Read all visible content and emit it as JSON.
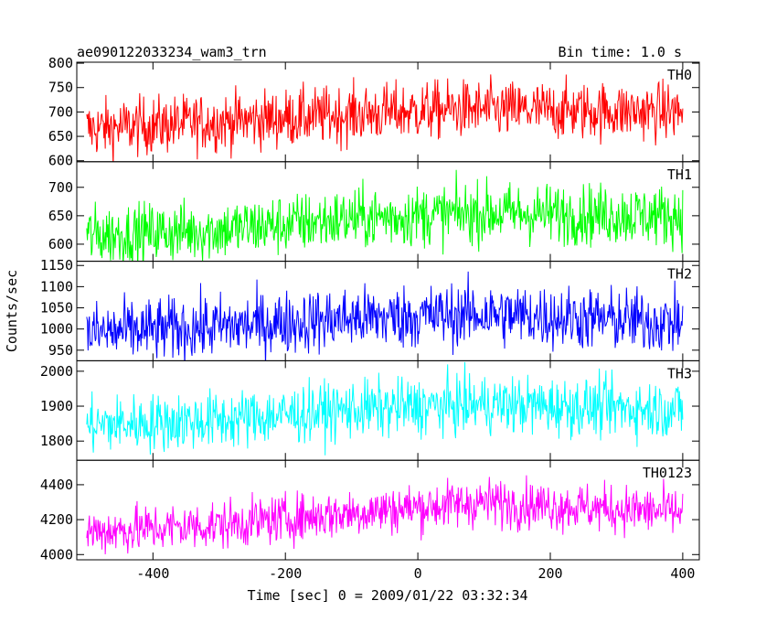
{
  "chart_data": {
    "type": "line",
    "title": "ae090122033234_wam3_trn",
    "subtitle": "Bin time: 1.0 s",
    "xlabel": "Time [sec] 0 = 2009/01/22 03:32:34",
    "ylabel": "Counts/sec",
    "xlim": [
      -515,
      425
    ],
    "xticks": [
      -400,
      -200,
      0,
      200,
      400
    ],
    "panels": [
      {
        "name": "TH0",
        "color": "#ff0000",
        "ylim": [
          598,
          802
        ],
        "yticks": [
          600,
          650,
          700,
          750,
          800
        ],
        "baseline": [
          [
            -500,
            665
          ],
          [
            -300,
            680
          ],
          [
            -100,
            695
          ],
          [
            50,
            705
          ],
          [
            400,
            700
          ]
        ],
        "noise": 30
      },
      {
        "name": "TH1",
        "color": "#00ff00",
        "ylim": [
          570,
          745
        ],
        "yticks": [
          600,
          650,
          700
        ],
        "baseline": [
          [
            -500,
            615
          ],
          [
            -300,
            625
          ],
          [
            -100,
            645
          ],
          [
            100,
            655
          ],
          [
            400,
            650
          ]
        ],
        "noise": 27
      },
      {
        "name": "TH2",
        "color": "#0000ff",
        "ylim": [
          925,
          1160
        ],
        "yticks": [
          950,
          1000,
          1050,
          1100,
          1150
        ],
        "baseline": [
          [
            -500,
            990
          ],
          [
            -300,
            1005
          ],
          [
            -100,
            1025
          ],
          [
            100,
            1035
          ],
          [
            400,
            1015
          ]
        ],
        "noise": 38
      },
      {
        "name": "TH3",
        "color": "#00ffff",
        "ylim": [
          1745,
          2030
        ],
        "yticks": [
          1800,
          1900,
          2000
        ],
        "baseline": [
          [
            -500,
            1845
          ],
          [
            -300,
            1860
          ],
          [
            -100,
            1890
          ],
          [
            100,
            1905
          ],
          [
            400,
            1890
          ]
        ],
        "noise": 42
      },
      {
        "name": "TH0123",
        "color": "#ff00ff",
        "ylim": [
          3970,
          4540
        ],
        "yticks": [
          4000,
          4200,
          4400
        ],
        "baseline": [
          [
            -500,
            4130
          ],
          [
            -300,
            4170
          ],
          [
            -100,
            4240
          ],
          [
            100,
            4300
          ],
          [
            400,
            4240
          ]
        ],
        "noise": 70
      }
    ]
  }
}
